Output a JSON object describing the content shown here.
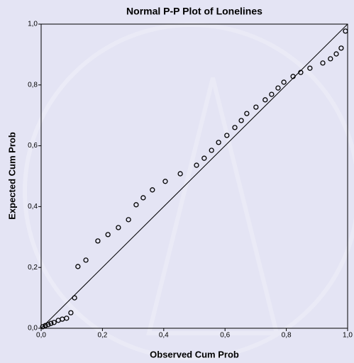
{
  "chart_data": {
    "type": "scatter",
    "title": "Normal P-P Plot of Lonelines",
    "x_label": "Observed Cum Prob",
    "y_label": "Expected Cum Prob",
    "xlim": [
      0,
      1
    ],
    "ylim": [
      0,
      1
    ],
    "xticks": [
      {
        "value": 0,
        "label": "0,0"
      },
      {
        "value": 0.2,
        "label": "0,2"
      },
      {
        "value": 0.4,
        "label": "0,4"
      },
      {
        "value": 0.6,
        "label": "0,6"
      },
      {
        "value": 0.8,
        "label": "0,8"
      },
      {
        "value": 1,
        "label": "1,0"
      }
    ],
    "yticks": [
      {
        "value": 0,
        "label": "0,0"
      },
      {
        "value": 0.2,
        "label": "0,2"
      },
      {
        "value": 0.4,
        "label": "0,4"
      },
      {
        "value": 0.6,
        "label": "0,6"
      },
      {
        "value": 0.8,
        "label": "0,8"
      },
      {
        "value": 1,
        "label": "1,0"
      }
    ],
    "color": "#000000",
    "x": [
      0.005,
      0.014,
      0.023,
      0.032,
      0.042,
      0.056,
      0.069,
      0.083,
      0.097,
      0.109,
      0.12,
      0.146,
      0.185,
      0.218,
      0.252,
      0.285,
      0.31,
      0.333,
      0.363,
      0.405,
      0.454,
      0.507,
      0.532,
      0.556,
      0.579,
      0.606,
      0.632,
      0.653,
      0.671,
      0.701,
      0.731,
      0.752,
      0.773,
      0.792,
      0.822,
      0.847,
      0.877,
      0.919,
      0.944,
      0.963,
      0.979,
      0.993
    ],
    "values": [
      0.005,
      0.009,
      0.012,
      0.016,
      0.019,
      0.026,
      0.03,
      0.033,
      0.051,
      0.1,
      0.203,
      0.224,
      0.287,
      0.308,
      0.331,
      0.357,
      0.406,
      0.429,
      0.455,
      0.483,
      0.508,
      0.536,
      0.559,
      0.585,
      0.611,
      0.634,
      0.66,
      0.683,
      0.706,
      0.727,
      0.751,
      0.769,
      0.79,
      0.809,
      0.828,
      0.841,
      0.855,
      0.872,
      0.886,
      0.902,
      0.921,
      0.977
    ]
  }
}
